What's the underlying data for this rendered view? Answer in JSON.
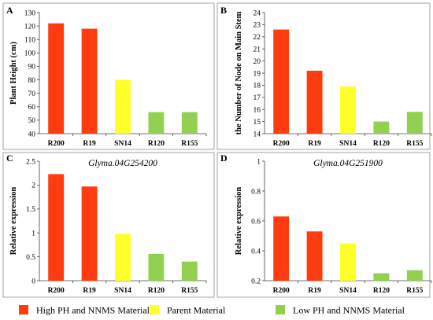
{
  "colors": {
    "high": "#ff3b10",
    "parent": "#ffff2a",
    "low": "#92d050",
    "frame": "#8c8c8c",
    "axis": "#404040"
  },
  "legend": [
    {
      "label": "High PH and NNMS Material",
      "color_key": "high"
    },
    {
      "label": "Parent Material",
      "color_key": "parent"
    },
    {
      "label": "Low PH and NNMS Material",
      "color_key": "low"
    }
  ],
  "chart_data": [
    {
      "type": "bar",
      "panel": "A",
      "title": "",
      "xlabel": "",
      "ylabel": "Plant Height (cm)",
      "categories": [
        "R200",
        "R19",
        "SN14",
        "R120",
        "R155"
      ],
      "values": [
        122,
        118,
        80,
        56,
        56
      ],
      "bar_colors": [
        "high",
        "high",
        "parent",
        "low",
        "low"
      ],
      "ylim": [
        40,
        130
      ],
      "yticks": [
        "40",
        "50",
        "60",
        "70",
        "80",
        "90",
        "100",
        "110",
        "120",
        "130"
      ],
      "grid": false
    },
    {
      "type": "bar",
      "panel": "B",
      "title": "",
      "xlabel": "",
      "ylabel": "the Number of Node on Main Stem",
      "categories": [
        "R200",
        "R19",
        "SN14",
        "R120",
        "R155"
      ],
      "values": [
        22.6,
        19.2,
        17.9,
        15.0,
        15.8
      ],
      "bar_colors": [
        "high",
        "high",
        "parent",
        "low",
        "low"
      ],
      "ylim": [
        14,
        24
      ],
      "yticks": [
        "14",
        "15",
        "16",
        "17",
        "18",
        "19",
        "20",
        "21",
        "22",
        "23",
        "24"
      ],
      "grid": false
    },
    {
      "type": "bar",
      "panel": "C",
      "title": "Glyma.04G254200",
      "xlabel": "",
      "ylabel": "Relative expression",
      "categories": [
        "R200",
        "R19",
        "SN14",
        "R120",
        "R155"
      ],
      "values": [
        2.23,
        1.97,
        0.98,
        0.56,
        0.4
      ],
      "bar_colors": [
        "high",
        "high",
        "parent",
        "low",
        "low"
      ],
      "ylim": [
        0,
        2.5
      ],
      "yticks": [
        "0",
        "0.5",
        "1",
        "1.5",
        "2",
        "2.5"
      ],
      "grid": false
    },
    {
      "type": "bar",
      "panel": "D",
      "title": "Glyma.04G251900",
      "xlabel": "",
      "ylabel": "Relative expression",
      "categories": [
        "R200",
        "R19",
        "SN14",
        "R120",
        "R155"
      ],
      "values": [
        0.63,
        0.53,
        0.45,
        0.25,
        0.27
      ],
      "bar_colors": [
        "high",
        "high",
        "parent",
        "low",
        "low"
      ],
      "ylim": [
        0.2,
        1
      ],
      "yticks": [
        "0.2",
        "0.4",
        "0.6",
        "0.8",
        "1"
      ],
      "grid": false
    }
  ]
}
